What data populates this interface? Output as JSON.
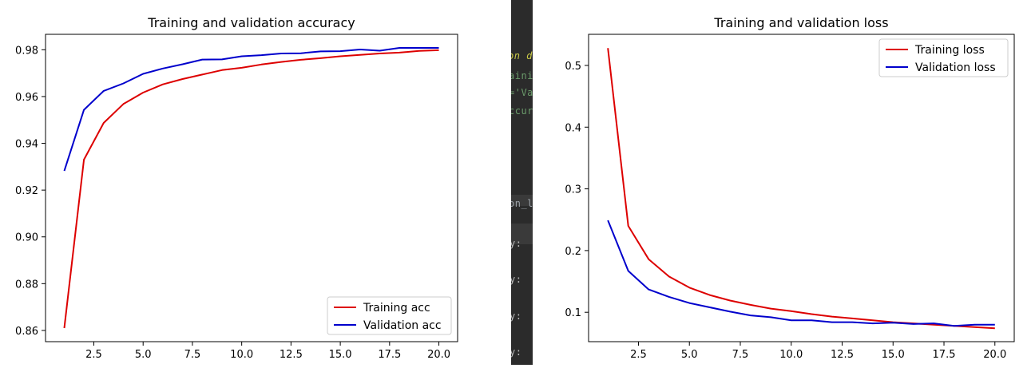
{
  "chart_data": [
    {
      "type": "line",
      "title": "Training and validation accuracy",
      "xlabel": "",
      "ylabel": "",
      "xlim": [
        0.05,
        20.95
      ],
      "ylim": [
        0.8552,
        0.9866
      ],
      "xticks": [
        2.5,
        5.0,
        7.5,
        10.0,
        12.5,
        15.0,
        17.5,
        20.0
      ],
      "xtick_labels": [
        "2.5",
        "5.0",
        "7.5",
        "10.0",
        "12.5",
        "15.0",
        "17.5",
        "20.0"
      ],
      "yticks": [
        0.86,
        0.88,
        0.9,
        0.92,
        0.94,
        0.96,
        0.98
      ],
      "ytick_labels": [
        "0.86",
        "0.88",
        "0.90",
        "0.92",
        "0.94",
        "0.96",
        "0.98"
      ],
      "grid": false,
      "legend_position": "bottom-right",
      "x": [
        1,
        2,
        3,
        4,
        5,
        6,
        7,
        8,
        9,
        10,
        11,
        12,
        13,
        14,
        15,
        16,
        17,
        18,
        19,
        20
      ],
      "series": [
        {
          "name": "Training acc",
          "color": "#dd0000",
          "values": [
            0.861,
            0.933,
            0.9487,
            0.9568,
            0.9617,
            0.9652,
            0.9675,
            0.9694,
            0.9713,
            0.9723,
            0.9737,
            0.9748,
            0.9757,
            0.9764,
            0.9772,
            0.9778,
            0.9784,
            0.9788,
            0.9795,
            0.9798
          ]
        },
        {
          "name": "Validation acc",
          "color": "#0000cc",
          "values": [
            0.9282,
            0.9543,
            0.9624,
            0.9656,
            0.9697,
            0.972,
            0.9738,
            0.9758,
            0.9759,
            0.9772,
            0.9777,
            0.9784,
            0.9785,
            0.9793,
            0.9794,
            0.9801,
            0.9796,
            0.9808,
            0.9808,
            0.9808
          ]
        }
      ]
    },
    {
      "type": "line",
      "title": "Training and validation loss",
      "xlabel": "",
      "ylabel": "",
      "xlim": [
        0.05,
        20.95
      ],
      "ylim": [
        0.0524,
        0.5504
      ],
      "xticks": [
        2.5,
        5.0,
        7.5,
        10.0,
        12.5,
        15.0,
        17.5,
        20.0
      ],
      "xtick_labels": [
        "2.5",
        "5.0",
        "7.5",
        "10.0",
        "12.5",
        "15.0",
        "17.5",
        "20.0"
      ],
      "yticks": [
        0.1,
        0.2,
        0.3,
        0.4,
        0.5
      ],
      "ytick_labels": [
        "0.1",
        "0.2",
        "0.3",
        "0.4",
        "0.5"
      ],
      "grid": false,
      "legend_position": "top-right",
      "x": [
        1,
        2,
        3,
        4,
        5,
        6,
        7,
        8,
        9,
        10,
        11,
        12,
        13,
        14,
        15,
        16,
        17,
        18,
        19,
        20
      ],
      "series": [
        {
          "name": "Training loss",
          "color": "#dd0000",
          "values": [
            0.528,
            0.24,
            0.186,
            0.158,
            0.14,
            0.128,
            0.119,
            0.112,
            0.106,
            0.102,
            0.097,
            0.093,
            0.09,
            0.087,
            0.084,
            0.082,
            0.08,
            0.078,
            0.076,
            0.074
          ]
        },
        {
          "name": "Validation loss",
          "color": "#0000cc",
          "values": [
            0.249,
            0.167,
            0.137,
            0.125,
            0.115,
            0.108,
            0.101,
            0.095,
            0.092,
            0.087,
            0.087,
            0.084,
            0.084,
            0.082,
            0.083,
            0.081,
            0.082,
            0.078,
            0.08,
            0.08
          ]
        }
      ]
    }
  ],
  "editor": {
    "fragments": [
      {
        "text": "on d",
        "color": "#c8c846",
        "italic": true
      },
      {
        "text": "aini",
        "color": "#6a9a6a"
      },
      {
        "text": "='Va",
        "color": "#6a9a6a"
      },
      {
        "text": "ccur",
        "color": "#6a9a6a"
      },
      {
        "text": "on_l",
        "color": "#9aa0a6"
      },
      {
        "text": "y:",
        "color": "#b8b8b8"
      },
      {
        "text": "y:",
        "color": "#b8b8b8"
      },
      {
        "text": "y:",
        "color": "#b8b8b8"
      },
      {
        "text": "y:",
        "color": "#b8b8b8"
      }
    ]
  }
}
